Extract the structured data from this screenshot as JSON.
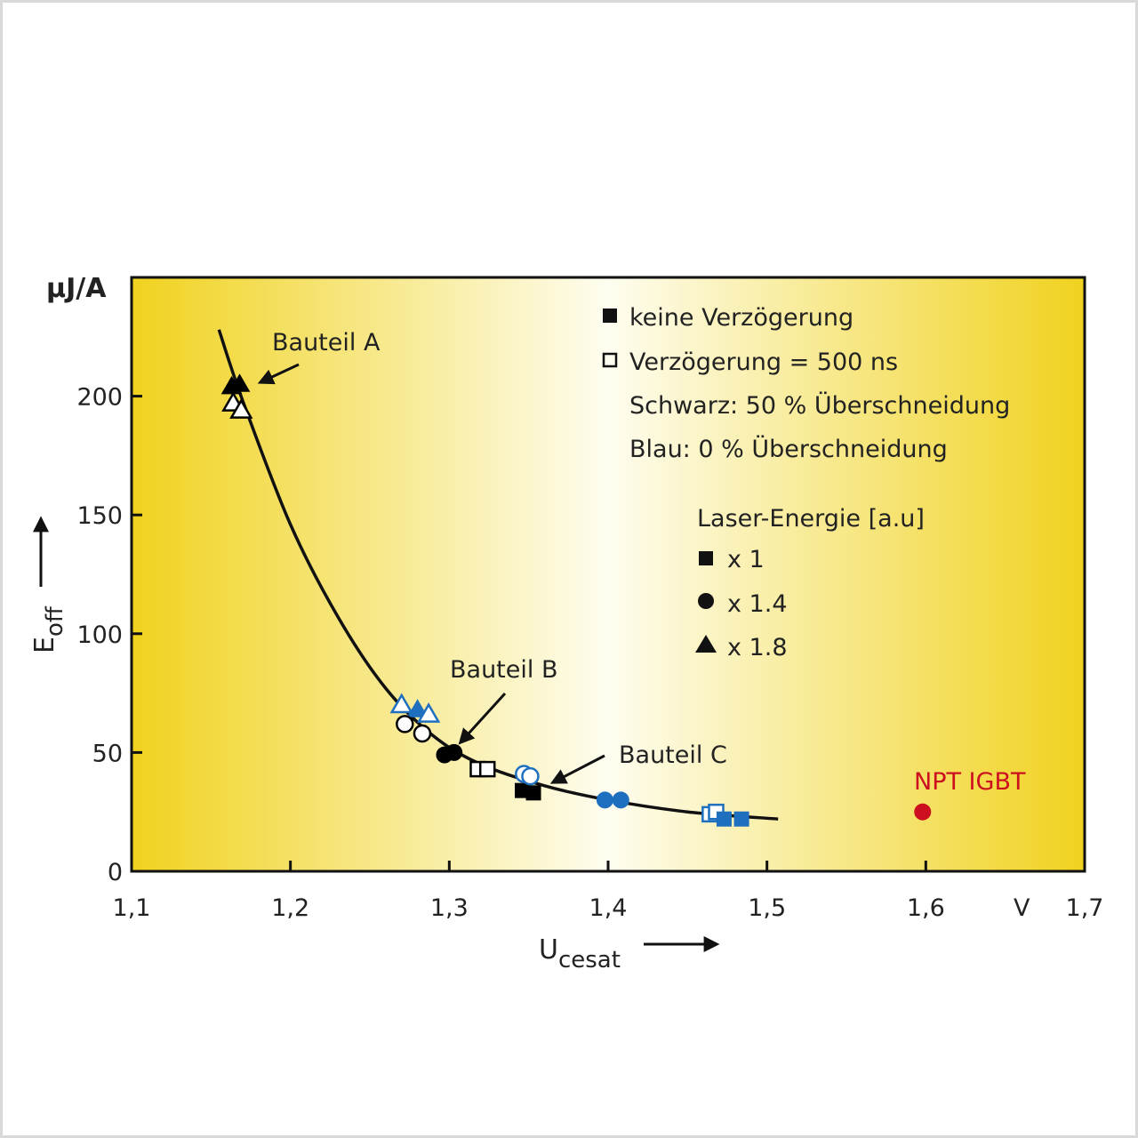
{
  "chart_data": {
    "type": "scatter",
    "x_unit": "V",
    "y_unit": "µJ/A",
    "xlabel": "U",
    "xlabel_sub": "cesat",
    "ylabel": "E",
    "ylabel_sub": "off",
    "xlim": [
      1.1,
      1.7
    ],
    "ylim": [
      0,
      250
    ],
    "x_ticks": [
      {
        "value": 1.1,
        "label": "1,1"
      },
      {
        "value": 1.2,
        "label": "1,2"
      },
      {
        "value": 1.3,
        "label": "1,3"
      },
      {
        "value": 1.4,
        "label": "1,4"
      },
      {
        "value": 1.5,
        "label": "1,5"
      },
      {
        "value": 1.6,
        "label": "1,6"
      },
      {
        "value": 1.7,
        "label": "1,7"
      }
    ],
    "y_ticks": [
      {
        "value": 0,
        "label": "0"
      },
      {
        "value": 50,
        "label": "50"
      },
      {
        "value": 100,
        "label": "100"
      },
      {
        "value": 150,
        "label": "150"
      },
      {
        "value": 200,
        "label": "200"
      }
    ],
    "legend": {
      "marker_fill": [
        {
          "label": "keine Verzögerung",
          "marker": "square",
          "filled": true
        },
        {
          "label": "Verzögerung = 500 ns",
          "marker": "square",
          "filled": false
        }
      ],
      "color_notes": [
        "Schwarz: 50 % Überschneidung",
        "Blau: 0 % Überschneidung"
      ],
      "shape_title": "Laser-Energie [a.u]",
      "shapes": [
        {
          "label": "x 1",
          "marker": "square"
        },
        {
          "label": "x 1.4",
          "marker": "circle"
        },
        {
          "label": "x 1.8",
          "marker": "triangle"
        }
      ]
    },
    "fit_curve": [
      {
        "x": 1.155,
        "y": 228
      },
      {
        "x": 1.17,
        "y": 198
      },
      {
        "x": 1.2,
        "y": 146
      },
      {
        "x": 1.23,
        "y": 107
      },
      {
        "x": 1.26,
        "y": 77
      },
      {
        "x": 1.29,
        "y": 57
      },
      {
        "x": 1.32,
        "y": 45
      },
      {
        "x": 1.36,
        "y": 36
      },
      {
        "x": 1.4,
        "y": 30
      },
      {
        "x": 1.45,
        "y": 25
      },
      {
        "x": 1.507,
        "y": 22
      }
    ],
    "points": [
      {
        "x": 1.163,
        "y": 204,
        "marker": "triangle",
        "filled": true,
        "color": "#000000"
      },
      {
        "x": 1.168,
        "y": 205,
        "marker": "triangle",
        "filled": true,
        "color": "#000000"
      },
      {
        "x": 1.164,
        "y": 197,
        "marker": "triangle",
        "filled": false,
        "color": "#000000"
      },
      {
        "x": 1.169,
        "y": 194,
        "marker": "triangle",
        "filled": false,
        "color": "#000000"
      },
      {
        "x": 1.27,
        "y": 70,
        "marker": "triangle",
        "filled": false,
        "color": "#1f6fbf"
      },
      {
        "x": 1.28,
        "y": 68,
        "marker": "triangle",
        "filled": true,
        "color": "#1f6fbf"
      },
      {
        "x": 1.287,
        "y": 66,
        "marker": "triangle",
        "filled": false,
        "color": "#1f6fbf"
      },
      {
        "x": 1.272,
        "y": 62,
        "marker": "circle",
        "filled": false,
        "color": "#000000"
      },
      {
        "x": 1.283,
        "y": 58,
        "marker": "circle",
        "filled": false,
        "color": "#000000"
      },
      {
        "x": 1.297,
        "y": 49,
        "marker": "circle",
        "filled": true,
        "color": "#000000"
      },
      {
        "x": 1.303,
        "y": 50,
        "marker": "circle",
        "filled": true,
        "color": "#000000"
      },
      {
        "x": 1.318,
        "y": 43,
        "marker": "square",
        "filled": false,
        "color": "#000000"
      },
      {
        "x": 1.324,
        "y": 43,
        "marker": "square",
        "filled": false,
        "color": "#000000"
      },
      {
        "x": 1.346,
        "y": 34,
        "marker": "square",
        "filled": true,
        "color": "#000000"
      },
      {
        "x": 1.353,
        "y": 33,
        "marker": "square",
        "filled": true,
        "color": "#000000"
      },
      {
        "x": 1.347,
        "y": 41,
        "marker": "circle",
        "filled": false,
        "color": "#1f6fbf"
      },
      {
        "x": 1.351,
        "y": 40,
        "marker": "circle",
        "filled": false,
        "color": "#1f6fbf"
      },
      {
        "x": 1.398,
        "y": 30,
        "marker": "circle",
        "filled": true,
        "color": "#1f6fbf"
      },
      {
        "x": 1.408,
        "y": 30,
        "marker": "circle",
        "filled": true,
        "color": "#1f6fbf"
      },
      {
        "x": 1.464,
        "y": 24,
        "marker": "square",
        "filled": false,
        "color": "#1f6fbf"
      },
      {
        "x": 1.468,
        "y": 25,
        "marker": "square",
        "filled": false,
        "color": "#1f6fbf"
      },
      {
        "x": 1.473,
        "y": 22,
        "marker": "square",
        "filled": true,
        "color": "#1f6fbf"
      },
      {
        "x": 1.484,
        "y": 22,
        "marker": "square",
        "filled": true,
        "color": "#1f6fbf"
      },
      {
        "x": 1.598,
        "y": 25,
        "marker": "circle",
        "filled": true,
        "color": "#cc1020"
      }
    ],
    "annotations": [
      {
        "text": "Bauteil A",
        "target": {
          "x": 1.17,
          "y": 205
        }
      },
      {
        "text": "Bauteil B",
        "target": {
          "x": 1.305,
          "y": 52
        }
      },
      {
        "text": "Bauteil C",
        "target": {
          "x": 1.36,
          "y": 36
        }
      },
      {
        "text": "NPT IGBT",
        "color": "#cc1020",
        "target": {
          "x": 1.598,
          "y": 25
        }
      }
    ],
    "gradient_colors": {
      "edge": "#f0d21e",
      "center": "#fefdf0"
    },
    "grid": false
  }
}
